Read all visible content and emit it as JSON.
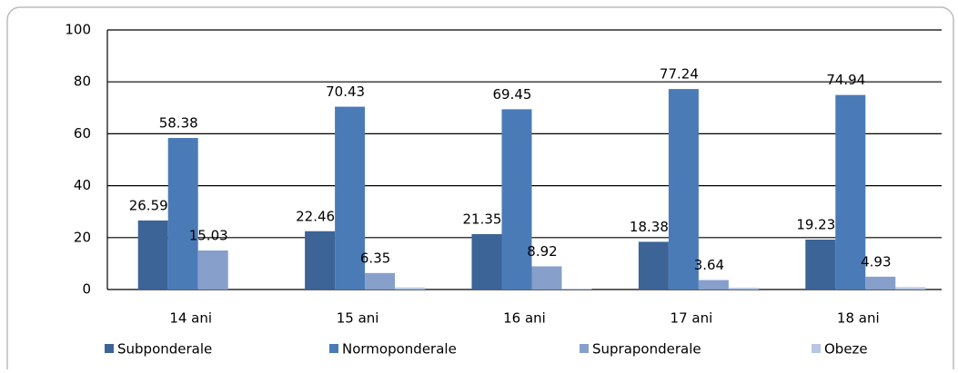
{
  "chart_data": {
    "type": "bar",
    "categories": [
      "14 ani",
      "15 ani",
      "16 ani",
      "17 ani",
      "18 ani"
    ],
    "series": [
      {
        "name": "Subponderale",
        "color": "#3c6496",
        "values": [
          26.59,
          22.46,
          21.35,
          18.38,
          19.23
        ],
        "labeled": true
      },
      {
        "name": "Normoponderale",
        "color": "#4a7bb7",
        "values": [
          58.38,
          70.43,
          69.45,
          77.24,
          74.94
        ],
        "labeled": true
      },
      {
        "name": "Supraponderale",
        "color": "#879fcb",
        "values": [
          15.03,
          6.35,
          8.92,
          3.64,
          4.93
        ],
        "labeled": true
      },
      {
        "name": "Obeze",
        "color": "#b7c7e3",
        "values": [
          0,
          0.8,
          0.3,
          0.7,
          0.9
        ],
        "labeled": false
      }
    ],
    "ylim": [
      0,
      100
    ],
    "yticks": [
      0,
      20,
      40,
      60,
      80,
      100
    ],
    "grid": true
  }
}
